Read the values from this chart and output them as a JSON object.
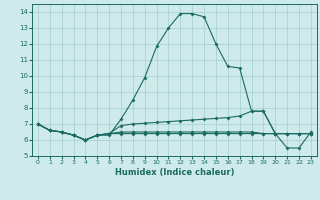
{
  "xlabel": "Humidex (Indice chaleur)",
  "background_color": "#ceeaea",
  "grid_color": "#a8d4d0",
  "line_color": "#1a6b63",
  "xlim": [
    -0.5,
    23.5
  ],
  "ylim": [
    5,
    14.5
  ],
  "yticks": [
    5,
    6,
    7,
    8,
    9,
    10,
    11,
    12,
    13,
    14
  ],
  "xticks": [
    0,
    1,
    2,
    3,
    4,
    5,
    6,
    7,
    8,
    9,
    10,
    11,
    12,
    13,
    14,
    15,
    16,
    17,
    18,
    19,
    20,
    21,
    22,
    23
  ],
  "line1_x": [
    0,
    1,
    2,
    3,
    4,
    5,
    6,
    7,
    8,
    9,
    10,
    11,
    12,
    13,
    14,
    15,
    16,
    17,
    18,
    19,
    20,
    21,
    22,
    23
  ],
  "line1_y": [
    7.0,
    6.6,
    6.5,
    6.3,
    6.0,
    6.3,
    6.3,
    7.3,
    8.5,
    9.9,
    11.85,
    13.0,
    13.9,
    13.9,
    13.7,
    12.0,
    10.6,
    10.5,
    7.8,
    7.8,
    6.4,
    5.5,
    5.5,
    6.5
  ],
  "line2_x": [
    0,
    1,
    2,
    3,
    4,
    5,
    6,
    7,
    8,
    9,
    10,
    11,
    12,
    13,
    14,
    15,
    16,
    17,
    18,
    19,
    20,
    21,
    22,
    23
  ],
  "line2_y": [
    7.0,
    6.6,
    6.5,
    6.3,
    6.0,
    6.3,
    6.4,
    6.9,
    7.0,
    7.05,
    7.1,
    7.15,
    7.2,
    7.25,
    7.3,
    7.35,
    7.4,
    7.5,
    7.8,
    7.8,
    6.4,
    6.4,
    6.4,
    6.4
  ],
  "line3_x": [
    0,
    1,
    2,
    3,
    4,
    5,
    6,
    7,
    8,
    9,
    10,
    11,
    12,
    13,
    14,
    15,
    16,
    17,
    18,
    19,
    20,
    21,
    22,
    23
  ],
  "line3_y": [
    7.0,
    6.6,
    6.5,
    6.3,
    6.0,
    6.3,
    6.4,
    6.5,
    6.5,
    6.5,
    6.5,
    6.5,
    6.5,
    6.5,
    6.5,
    6.5,
    6.5,
    6.5,
    6.5,
    6.4,
    6.4,
    6.4,
    6.4,
    6.4
  ],
  "line4_x": [
    0,
    1,
    2,
    3,
    4,
    5,
    6,
    7,
    8,
    9,
    10,
    11,
    12,
    13,
    14,
    15,
    16,
    17,
    18,
    19,
    20,
    21,
    22,
    23
  ],
  "line4_y": [
    7.0,
    6.6,
    6.5,
    6.3,
    6.0,
    6.3,
    6.4,
    6.4,
    6.4,
    6.4,
    6.4,
    6.4,
    6.4,
    6.4,
    6.4,
    6.4,
    6.4,
    6.4,
    6.4,
    6.4,
    6.4,
    6.4,
    6.4,
    6.4
  ]
}
